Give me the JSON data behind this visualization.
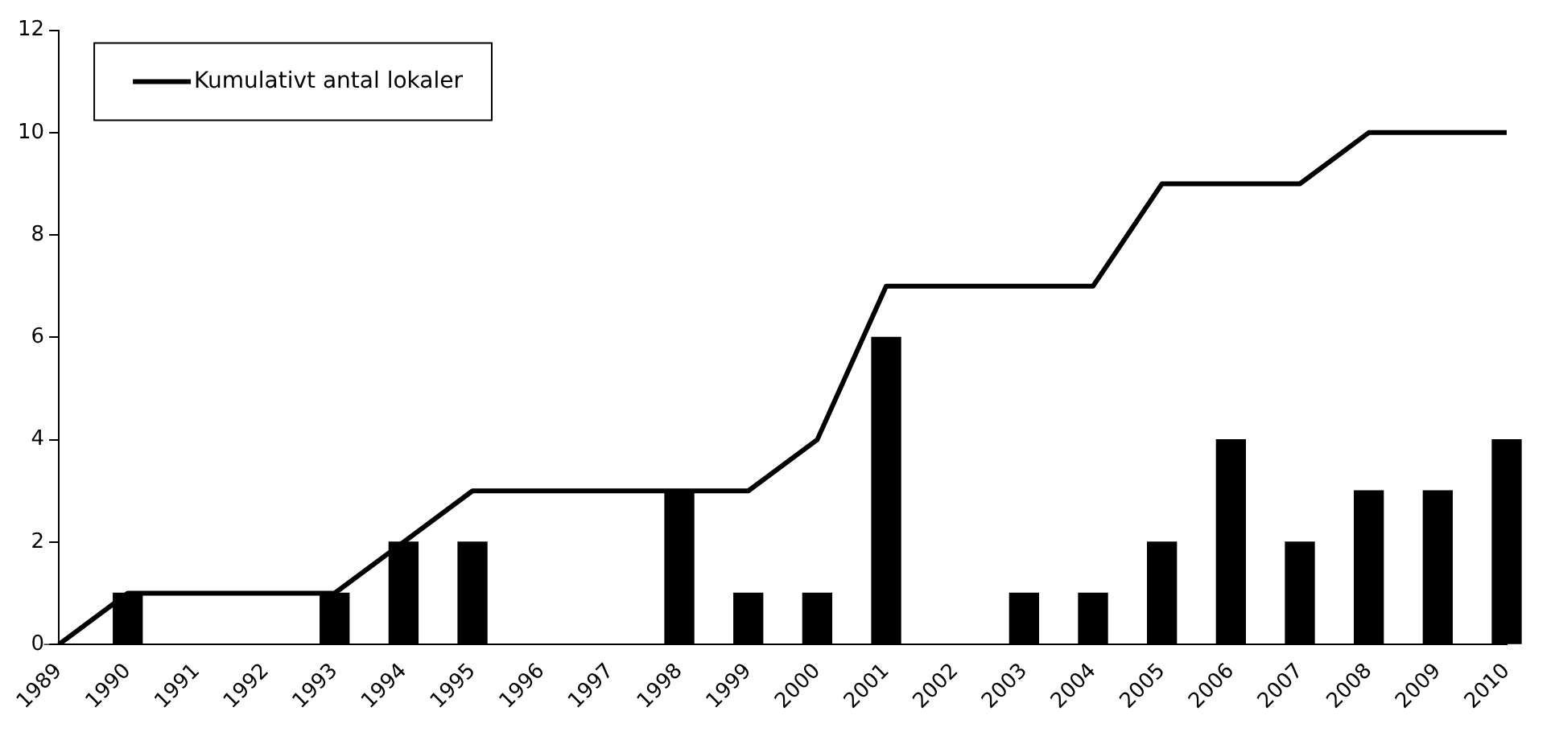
{
  "chart_data": {
    "type": "bar",
    "categories": [
      "1989",
      "1990",
      "1991",
      "1992",
      "1993",
      "1994",
      "1995",
      "1996",
      "1997",
      "1998",
      "1999",
      "2000",
      "2001",
      "2002",
      "2003",
      "2004",
      "2005",
      "2006",
      "2007",
      "2008",
      "2009",
      "2010"
    ],
    "series": [
      {
        "color": "#000000",
        "values": [
          0,
          1,
          0,
          0,
          1,
          2,
          2,
          0,
          0,
          3,
          1,
          1,
          6,
          0,
          1,
          1,
          2,
          4,
          2,
          3,
          3,
          4
        ]
      },
      {
        "type": "line",
        "name": "Kumulativt antal lokaler",
        "color": "#000000",
        "values": [
          0,
          1,
          1,
          1,
          1,
          2,
          3,
          3,
          3,
          3,
          3,
          4,
          7,
          7,
          7,
          7,
          9,
          9,
          9,
          10,
          10,
          10
        ]
      }
    ],
    "ylim": [
      0,
      12
    ],
    "yticks": [
      0,
      2,
      4,
      6,
      8,
      10,
      12
    ],
    "grid": false,
    "legend": "top left",
    "marker": "none",
    "line_style": "solid"
  }
}
